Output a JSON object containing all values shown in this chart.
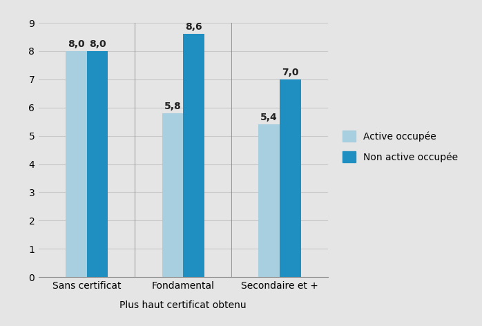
{
  "categories": [
    "Sans certificat",
    "Fondamental",
    "Secondaire et +"
  ],
  "series": [
    {
      "label": "Active occupée",
      "values": [
        8.0,
        5.8,
        5.4
      ],
      "color": "#a8cfe0"
    },
    {
      "label": "Non active occupée",
      "values": [
        8.0,
        8.6,
        7.0
      ],
      "color": "#1e8fc0"
    }
  ],
  "ylim": [
    0,
    9
  ],
  "yticks": [
    0,
    1,
    2,
    3,
    4,
    5,
    6,
    7,
    8,
    9
  ],
  "xlabel": "Plus haut certificat obtenu",
  "background_color": "#e5e5e5",
  "bar_width": 0.22,
  "tick_fontsize": 10,
  "xlabel_fontsize": 10,
  "legend_fontsize": 10,
  "value_fontsize": 10,
  "grid_color": "#c8c8c8"
}
